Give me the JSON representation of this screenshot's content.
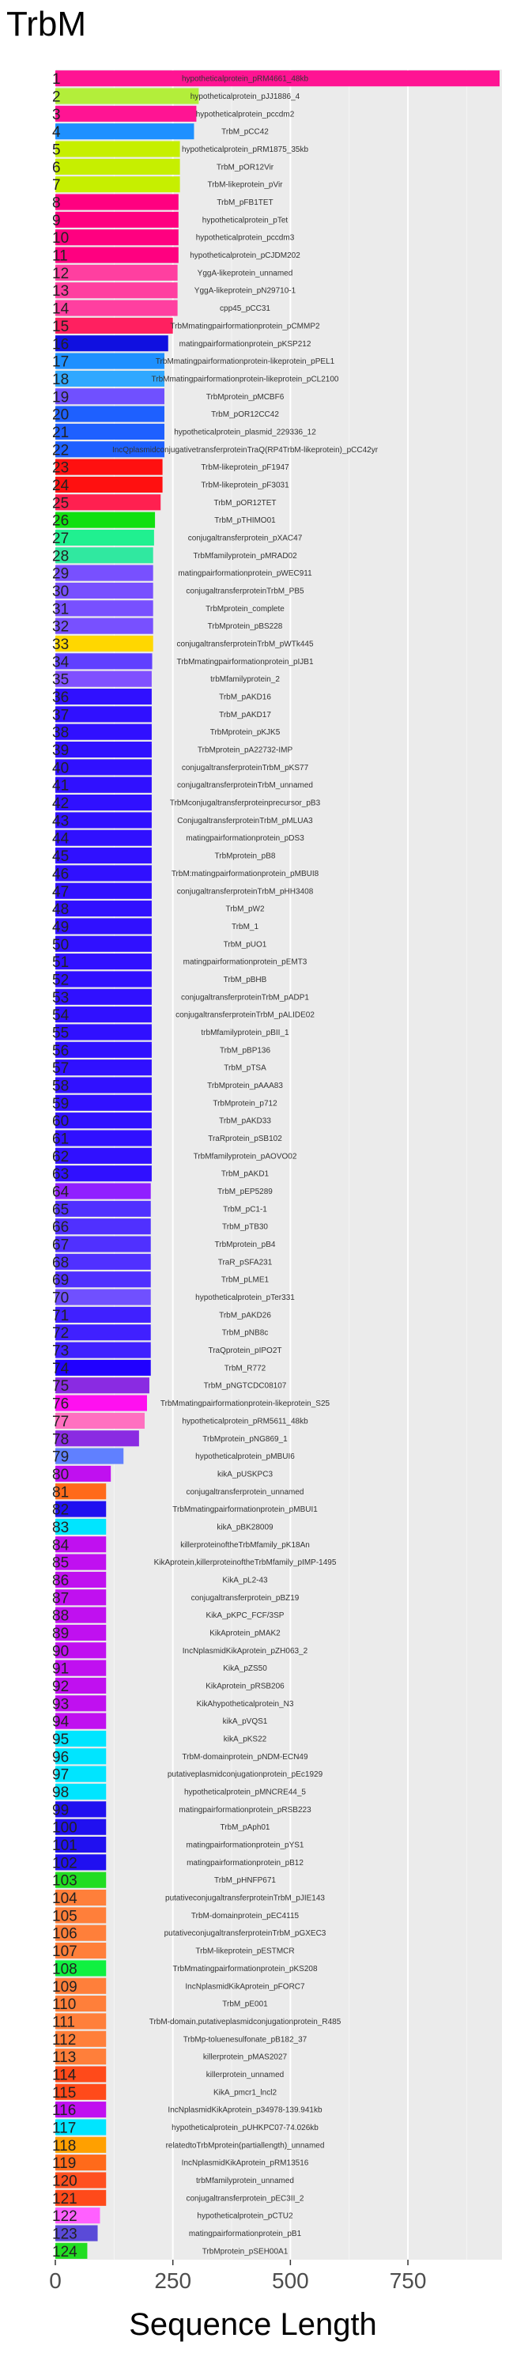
{
  "chart_data": {
    "type": "bar",
    "orientation": "horizontal",
    "title": "TrbM",
    "xlabel": "Sequence Length",
    "ylabel": "",
    "xlim": [
      0,
      950
    ],
    "xticks": [
      0,
      250,
      500,
      750
    ],
    "grid": true,
    "legend": "none",
    "bars": [
      {
        "rank": "1",
        "label": "hypotheticalprotein_pRM4661_48kb",
        "value": 945,
        "color": "#ff1493"
      },
      {
        "rank": "2",
        "label": "hypotheticalprotein_pJJ1886_4",
        "value": 305,
        "color": "#b3ee3a"
      },
      {
        "rank": "3",
        "label": "hypotheticalprotein_pccdm2",
        "value": 300,
        "color": "#ff1493"
      },
      {
        "rank": "4",
        "label": "TrbM_pCC42",
        "value": 295,
        "color": "#1e90ff"
      },
      {
        "rank": "5",
        "label": "hypotheticalprotein_pRM1875_35kb",
        "value": 265,
        "color": "#c6ef00"
      },
      {
        "rank": "6",
        "label": "TrbM_pOR12Vir",
        "value": 265,
        "color": "#c6ef00"
      },
      {
        "rank": "7",
        "label": "TrbM-likeprotein_pVir",
        "value": 265,
        "color": "#c6ef00"
      },
      {
        "rank": "8",
        "label": "TrbM_pFB1TET",
        "value": 262,
        "color": "#ff0080"
      },
      {
        "rank": "9",
        "label": "hypotheticalprotein_pTet",
        "value": 262,
        "color": "#ff0080"
      },
      {
        "rank": "10",
        "label": "hypotheticalprotein_pccdm3",
        "value": 262,
        "color": "#ff0080"
      },
      {
        "rank": "11",
        "label": "hypotheticalprotein_pCJDM202",
        "value": 262,
        "color": "#ff0080"
      },
      {
        "rank": "12",
        "label": "YggA-likeprotein_unnamed",
        "value": 260,
        "color": "#ff3fa0"
      },
      {
        "rank": "13",
        "label": "YggA-likeprotein_pN29710-1",
        "value": 260,
        "color": "#ff3fa0"
      },
      {
        "rank": "14",
        "label": "cpp45_pCC31",
        "value": 260,
        "color": "#ff3fa0"
      },
      {
        "rank": "15",
        "label": "TrbMmatingpairformationprotein_pCMMP2",
        "value": 250,
        "color": "#ff2060"
      },
      {
        "rank": "16",
        "label": "matingpairformationprotein_pKSP212",
        "value": 240,
        "color": "#1010e0"
      },
      {
        "rank": "17",
        "label": "TrbMmatingpairformationprotein-likeprotein_pPEL1",
        "value": 232,
        "color": "#1e90ff"
      },
      {
        "rank": "18",
        "label": "TrbMmatingpairformationprotein-likeprotein_pCL2100",
        "value": 232,
        "color": "#30a8ff"
      },
      {
        "rank": "19",
        "label": "TrbMprotein_pMCBF6",
        "value": 232,
        "color": "#7050ff"
      },
      {
        "rank": "20",
        "label": "TrbM_pOR12CC42",
        "value": 232,
        "color": "#1e60ff"
      },
      {
        "rank": "21",
        "label": "hypotheticalprotein_plasmid_229336_12",
        "value": 232,
        "color": "#1e60ff"
      },
      {
        "rank": "22",
        "label": "IncQplasmidconjugativetransferproteinTraQ(RP4TrbM-likeprotein)_pCC42yr",
        "value": 232,
        "color": "#1e60ff"
      },
      {
        "rank": "23",
        "label": "TrbM-likeprotein_pF1947",
        "value": 228,
        "color": "#ff1010"
      },
      {
        "rank": "24",
        "label": "TrbM-likeprotein_pF3031",
        "value": 228,
        "color": "#ff1010"
      },
      {
        "rank": "25",
        "label": "TrbM_pOR12TET",
        "value": 224,
        "color": "#ff2050"
      },
      {
        "rank": "26",
        "label": "TrbM_pTHIMO01",
        "value": 212,
        "color": "#10e010"
      },
      {
        "rank": "27",
        "label": "conjugaltransferprotein_pXAC47",
        "value": 210,
        "color": "#20f090"
      },
      {
        "rank": "28",
        "label": "TrbMfamilyprotein_pMRAD02",
        "value": 208,
        "color": "#30e8a0"
      },
      {
        "rank": "29",
        "label": "matingpairformationprotein_pWEC911",
        "value": 208,
        "color": "#7850ff"
      },
      {
        "rank": "30",
        "label": "conjugaltransferproteinTrbM_PB5",
        "value": 208,
        "color": "#7850ff"
      },
      {
        "rank": "31",
        "label": "TrbMprotein_complete",
        "value": 208,
        "color": "#7850ff"
      },
      {
        "rank": "32",
        "label": "TrbMprotein_pBS228",
        "value": 208,
        "color": "#7850ff"
      },
      {
        "rank": "33",
        "label": "conjugaltransferproteinTrbM_pWTk445",
        "value": 208,
        "color": "#ffd700"
      },
      {
        "rank": "34",
        "label": "TrbMmatingpairformationprotein_pIJB1",
        "value": 206,
        "color": "#6040ff"
      },
      {
        "rank": "35",
        "label": "trbMfamilyprotein_2",
        "value": 205,
        "color": "#8050ff"
      },
      {
        "rank": "36",
        "label": "TrbM_pAKD16",
        "value": 205,
        "color": "#3010ff"
      },
      {
        "rank": "37",
        "label": "TrbM_pAKD17",
        "value": 205,
        "color": "#3010ff"
      },
      {
        "rank": "38",
        "label": "TrbMprotein_pKJK5",
        "value": 205,
        "color": "#3010ff"
      },
      {
        "rank": "39",
        "label": "TrbMprotein_pA22732-IMP",
        "value": 205,
        "color": "#3010ff"
      },
      {
        "rank": "40",
        "label": "conjugaltransferproteinTrbM_pKS77",
        "value": 205,
        "color": "#3010ff"
      },
      {
        "rank": "41",
        "label": "conjugaltransferproteinTrbM_unnamed",
        "value": 205,
        "color": "#3010ff"
      },
      {
        "rank": "42",
        "label": "TrbMconjugaltransferproteinprecursor_pB3",
        "value": 205,
        "color": "#3010ff"
      },
      {
        "rank": "43",
        "label": "ConjugaltransferproteinTrbM_pMLUA3",
        "value": 205,
        "color": "#3010ff"
      },
      {
        "rank": "44",
        "label": "matingpairformationprotein_pDS3",
        "value": 205,
        "color": "#3010ff"
      },
      {
        "rank": "45",
        "label": "TrbMprotein_pB8",
        "value": 205,
        "color": "#3010ff"
      },
      {
        "rank": "46",
        "label": "TrbM:matingpairformationprotein_pMBUI8",
        "value": 205,
        "color": "#3010ff"
      },
      {
        "rank": "47",
        "label": "conjugaltransferproteinTrbM_pHH3408",
        "value": 205,
        "color": "#3010ff"
      },
      {
        "rank": "48",
        "label": "TrbM_pW2",
        "value": 205,
        "color": "#3010ff"
      },
      {
        "rank": "49",
        "label": "TrbM_1",
        "value": 205,
        "color": "#3010ff"
      },
      {
        "rank": "50",
        "label": "TrbM_pUO1",
        "value": 205,
        "color": "#3010ff"
      },
      {
        "rank": "51",
        "label": "matingpairformationprotein_pEMT3",
        "value": 205,
        "color": "#3010ff"
      },
      {
        "rank": "52",
        "label": "TrbM_pBHB",
        "value": 205,
        "color": "#3010ff"
      },
      {
        "rank": "53",
        "label": "conjugaltransferproteinTrbM_pADP1",
        "value": 205,
        "color": "#3010ff"
      },
      {
        "rank": "54",
        "label": "conjugaltransferproteinTrbM_pALIDE02",
        "value": 205,
        "color": "#3010ff"
      },
      {
        "rank": "55",
        "label": "trbMfamilyprotein_pBII_1",
        "value": 205,
        "color": "#3010ff"
      },
      {
        "rank": "56",
        "label": "TrbM_pBP136",
        "value": 205,
        "color": "#3010ff"
      },
      {
        "rank": "57",
        "label": "TrbM_pTSA",
        "value": 205,
        "color": "#3010ff"
      },
      {
        "rank": "58",
        "label": "TrbMprotein_pAAA83",
        "value": 205,
        "color": "#3010ff"
      },
      {
        "rank": "59",
        "label": "TrbMprotein_p712",
        "value": 205,
        "color": "#3010ff"
      },
      {
        "rank": "60",
        "label": "TrbM_pAKD33",
        "value": 205,
        "color": "#3010ff"
      },
      {
        "rank": "61",
        "label": "TraRprotein_pSB102",
        "value": 205,
        "color": "#3010ff"
      },
      {
        "rank": "62",
        "label": "TrbMfamilyprotein_pAOVO02",
        "value": 205,
        "color": "#3010ff"
      },
      {
        "rank": "63",
        "label": "TrbM_pAKD1",
        "value": 205,
        "color": "#3010ff"
      },
      {
        "rank": "64",
        "label": "TrbM_pEP5289",
        "value": 203,
        "color": "#9020ff"
      },
      {
        "rank": "65",
        "label": "TrbM_pC1-1",
        "value": 203,
        "color": "#5030ff"
      },
      {
        "rank": "66",
        "label": "TrbM_pTB30",
        "value": 203,
        "color": "#5030ff"
      },
      {
        "rank": "67",
        "label": "TrbMprotein_pB4",
        "value": 203,
        "color": "#5030ff"
      },
      {
        "rank": "68",
        "label": "TraR_pSFA231",
        "value": 203,
        "color": "#5030ff"
      },
      {
        "rank": "69",
        "label": "TrbM_pLME1",
        "value": 203,
        "color": "#5030ff"
      },
      {
        "rank": "70",
        "label": "hypotheticalprotein_pTer331",
        "value": 203,
        "color": "#7050ff"
      },
      {
        "rank": "71",
        "label": "TrbM_pAKD26",
        "value": 203,
        "color": "#4020ff"
      },
      {
        "rank": "72",
        "label": "TrbM_pNB8c",
        "value": 203,
        "color": "#4020ff"
      },
      {
        "rank": "73",
        "label": "TraQprotein_pIPO2T",
        "value": 203,
        "color": "#4020ff"
      },
      {
        "rank": "74",
        "label": "TrbM_R772",
        "value": 203,
        "color": "#2000ff"
      },
      {
        "rank": "75",
        "label": "TrbM_pNGTCDC08107",
        "value": 200,
        "color": "#8a2be2"
      },
      {
        "rank": "76",
        "label": "TrbMmatingpairformationprotein-likeprotein_S25",
        "value": 195,
        "color": "#ff10f0"
      },
      {
        "rank": "77",
        "label": "hypotheticalprotein_pRM5611_48kb",
        "value": 190,
        "color": "#ff70c0"
      },
      {
        "rank": "78",
        "label": "TrbMprotein_pNG869_1",
        "value": 178,
        "color": "#8a2be2"
      },
      {
        "rank": "79",
        "label": "hypotheticalprotein_pMBUI6",
        "value": 145,
        "color": "#6080ff"
      },
      {
        "rank": "80",
        "label": "kikA_pUSKPC3",
        "value": 118,
        "color": "#c010f0"
      },
      {
        "rank": "81",
        "label": "conjugaltransferprotein_unnamed",
        "value": 108,
        "color": "#ff6a1a"
      },
      {
        "rank": "82",
        "label": "TrbMmatingpairformationprotein_pMBUI1",
        "value": 108,
        "color": "#2010f0"
      },
      {
        "rank": "83",
        "label": "kikA_pBK28009",
        "value": 108,
        "color": "#00e5ff"
      },
      {
        "rank": "84",
        "label": "killerproteinoftheTrbMfamily_pK18An",
        "value": 108,
        "color": "#c010f0"
      },
      {
        "rank": "85",
        "label": "KikAprotein,killerproteinoftheTrbMfamily_pIMP-1495",
        "value": 108,
        "color": "#c010f0"
      },
      {
        "rank": "86",
        "label": "KikA_pL2-43",
        "value": 108,
        "color": "#c010f0"
      },
      {
        "rank": "87",
        "label": "conjugaltransferprotein_pBZ19",
        "value": 108,
        "color": "#c010f0"
      },
      {
        "rank": "88",
        "label": "KikA_pKPC_FCF/3SP",
        "value": 108,
        "color": "#c010f0"
      },
      {
        "rank": "89",
        "label": "KikAprotein_pMAK2",
        "value": 108,
        "color": "#c010f0"
      },
      {
        "rank": "90",
        "label": "IncNplasmidKikAprotein_pZH063_2",
        "value": 108,
        "color": "#c010f0"
      },
      {
        "rank": "91",
        "label": "KikA_pZS50",
        "value": 108,
        "color": "#c010f0"
      },
      {
        "rank": "92",
        "label": "KikAprotein_pRSB206",
        "value": 108,
        "color": "#c010f0"
      },
      {
        "rank": "93",
        "label": "KikAhypotheticalprotein_N3",
        "value": 108,
        "color": "#c010f0"
      },
      {
        "rank": "94",
        "label": "kikA_pVQS1",
        "value": 108,
        "color": "#c010f0"
      },
      {
        "rank": "95",
        "label": "kikA_pKS22",
        "value": 108,
        "color": "#00e5ff"
      },
      {
        "rank": "96",
        "label": "TrbM-domainprotein_pNDM-ECN49",
        "value": 108,
        "color": "#00e5ff"
      },
      {
        "rank": "97",
        "label": "putativeplasmidconjugationprotein_pEc1929",
        "value": 108,
        "color": "#00e5ff"
      },
      {
        "rank": "98",
        "label": "hypotheticalprotein_pMNCRE44_5",
        "value": 108,
        "color": "#00e5ff"
      },
      {
        "rank": "99",
        "label": "matingpairformationprotein_pRSB223",
        "value": 108,
        "color": "#2010f0"
      },
      {
        "rank": "100",
        "label": "TrbM_pAph01",
        "value": 108,
        "color": "#2010f0"
      },
      {
        "rank": "101",
        "label": "matingpairformationprotein_pYS1",
        "value": 108,
        "color": "#2010f0"
      },
      {
        "rank": "102",
        "label": "matingpairformationprotein_pB12",
        "value": 108,
        "color": "#2010f0"
      },
      {
        "rank": "103",
        "label": "TrbM_pHNFP671",
        "value": 108,
        "color": "#22dd22"
      },
      {
        "rank": "104",
        "label": "putativeconjugaltransferproteinTrbM_pJIE143",
        "value": 108,
        "color": "#ff7f3a"
      },
      {
        "rank": "105",
        "label": "TrbM-domainprotein_pEC4115",
        "value": 108,
        "color": "#ff7f3a"
      },
      {
        "rank": "106",
        "label": "putativeconjugaltransferproteinTrbM_pGXEC3",
        "value": 108,
        "color": "#ff7f3a"
      },
      {
        "rank": "107",
        "label": "TrbM-likeprotein_pESTMCR",
        "value": 108,
        "color": "#ff7f3a"
      },
      {
        "rank": "108",
        "label": "TrbMmatingpairformationprotein_pKS208",
        "value": 108,
        "color": "#10f040"
      },
      {
        "rank": "109",
        "label": "IncNplasmidKikAprotein_pFORC7",
        "value": 108,
        "color": "#ff7f3a"
      },
      {
        "rank": "110",
        "label": "TrbM_pE001",
        "value": 108,
        "color": "#ff7f3a"
      },
      {
        "rank": "111",
        "label": "TrbM-domain,putativeplasmidconjugationprotein_R485",
        "value": 108,
        "color": "#ff7f3a"
      },
      {
        "rank": "112",
        "label": "TrbMp-toluenesulfonate_pB182_37",
        "value": 108,
        "color": "#ff7f3a"
      },
      {
        "rank": "113",
        "label": "killerprotein_pMAS2027",
        "value": 108,
        "color": "#ff7f3a"
      },
      {
        "rank": "114",
        "label": "killerprotein_unnamed",
        "value": 108,
        "color": "#ff4a1a"
      },
      {
        "rank": "115",
        "label": "KikA_pmcr1_lncl2",
        "value": 108,
        "color": "#ff4a1a"
      },
      {
        "rank": "116",
        "label": "IncNplasmidKikAprotein_p34978-139.941kb",
        "value": 108,
        "color": "#c010f0"
      },
      {
        "rank": "117",
        "label": "hypotheticalprotein_pUHKPC07-74.026kb",
        "value": 108,
        "color": "#00e5ff"
      },
      {
        "rank": "118",
        "label": "relatedtoTrbMprotein(partiallength)_unnamed",
        "value": 108,
        "color": "#ffa000"
      },
      {
        "rank": "119",
        "label": "IncNplasmidKikAprotein_pRM13516",
        "value": 108,
        "color": "#ff6a1a"
      },
      {
        "rank": "120",
        "label": "trbMfamilyprotein_unnamed",
        "value": 108,
        "color": "#ff5020"
      },
      {
        "rank": "121",
        "label": "conjugaltransferprotein_pEC3II_2",
        "value": 108,
        "color": "#ff4a1a"
      },
      {
        "rank": "122",
        "label": "hypotheticalprotein_pCTU2",
        "value": 95,
        "color": "#ff60ff"
      },
      {
        "rank": "123",
        "label": "matingpairformationprotein_pB1",
        "value": 90,
        "color": "#5a4ad8"
      },
      {
        "rank": "124",
        "label": "TrbMprotein_pSEH00A1",
        "value": 68,
        "color": "#22dd22"
      }
    ]
  }
}
